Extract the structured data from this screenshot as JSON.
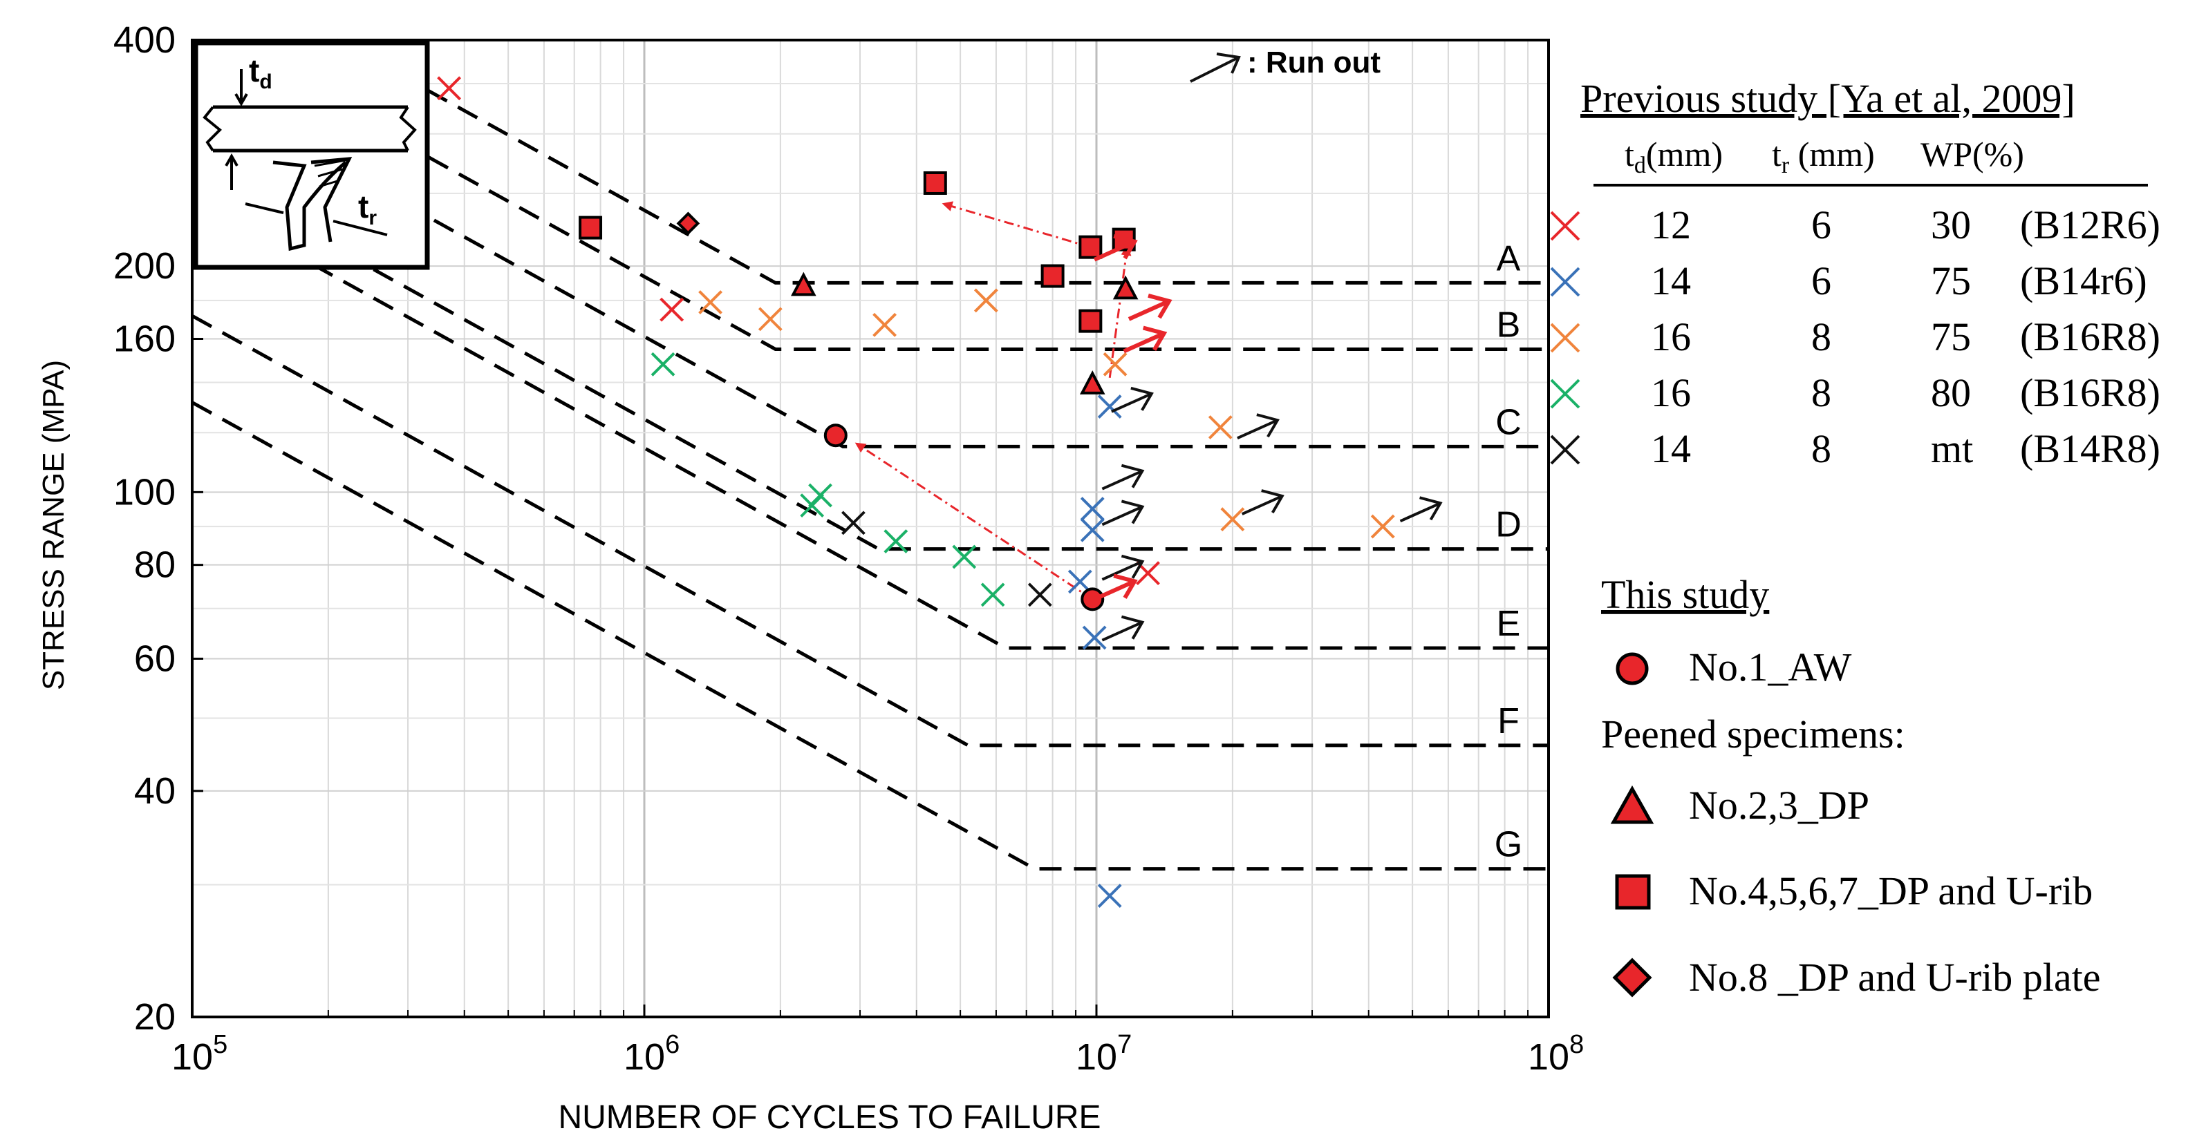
{
  "chart_data": {
    "type": "scatter",
    "x_scale": "log",
    "y_scale": "log",
    "xlim": [
      100000,
      100000000
    ],
    "ylim": [
      20,
      400
    ],
    "xlabel": "NUMBER OF CYCLES TO FAILURE",
    "ylabel": "STRESS RANGE (MPA)",
    "x_ticks": [
      {
        "value": 100000,
        "base": "10",
        "exp": "5"
      },
      {
        "value": 1000000,
        "base": "10",
        "exp": "6"
      },
      {
        "value": 10000000,
        "base": "10",
        "exp": "7"
      },
      {
        "value": 100000000,
        "base": "10",
        "exp": "8"
      }
    ],
    "y_ticks": [
      {
        "value": 400,
        "label": "400"
      },
      {
        "value": 200,
        "label": "200"
      },
      {
        "value": 160,
        "label": "160"
      },
      {
        "value": 100,
        "label": "100"
      },
      {
        "value": 80,
        "label": "80"
      },
      {
        "value": 60,
        "label": "60"
      },
      {
        "value": 40,
        "label": "40"
      },
      {
        "value": 20,
        "label": "20"
      }
    ],
    "grid": true,
    "runout_label": ": Run out",
    "design_curves": [
      {
        "name": "A",
        "knee_n": 1950000,
        "knee_s": 190
      },
      {
        "name": "B",
        "knee_n": 1950000,
        "knee_s": 155
      },
      {
        "name": "C",
        "knee_n": 2750000,
        "knee_s": 115
      },
      {
        "name": "D",
        "knee_n": 3300000,
        "knee_s": 84
      },
      {
        "name": "E",
        "knee_n": 6300000,
        "knee_s": 62
      },
      {
        "name": "F",
        "knee_n": 5200000,
        "knee_s": 46
      },
      {
        "name": "G",
        "knee_n": 7300000,
        "knee_s": 31.5
      }
    ],
    "series": [
      {
        "name": "B12R6",
        "color": "#e8262b",
        "marker": "x",
        "points": [
          [
            370000,
            345
          ],
          [
            1150000,
            175
          ],
          [
            13000000,
            78
          ]
        ]
      },
      {
        "name": "B14r6",
        "color": "#3a72b8",
        "marker": "x",
        "points": [
          [
            10700000,
            130
          ],
          [
            9800000,
            95
          ],
          [
            9800000,
            89
          ],
          [
            9200000,
            76
          ],
          [
            9900000,
            64
          ],
          [
            10700000,
            29
          ]
        ]
      },
      {
        "name": "B16R8",
        "color": "#f0843c",
        "marker": "x",
        "points": [
          [
            1400000,
            179
          ],
          [
            1900000,
            170
          ],
          [
            3400000,
            167
          ],
          [
            5700000,
            180
          ],
          [
            11000000,
            148
          ],
          [
            18800000,
            122
          ],
          [
            20000000,
            92
          ],
          [
            43000000,
            90
          ]
        ]
      },
      {
        "name": "B16R8",
        "color": "#1ab167",
        "marker": "x",
        "points": [
          [
            1100000,
            148
          ],
          [
            2350000,
            96
          ],
          [
            2450000,
            99
          ],
          [
            3600000,
            86
          ],
          [
            5100000,
            82
          ],
          [
            5900000,
            73
          ]
        ]
      },
      {
        "name": "B14R8",
        "color": "#111111",
        "marker": "x",
        "points": [
          [
            2900000,
            91
          ],
          [
            7500000,
            73
          ]
        ]
      },
      {
        "name": "No.1_AW",
        "color": "#e8262b",
        "marker": "circle",
        "points": [
          [
            2650000,
            119
          ],
          [
            9800000,
            72
          ]
        ]
      },
      {
        "name": "No.2,3_DP",
        "color": "#e8262b",
        "marker": "triangle",
        "points": [
          [
            2250000,
            188
          ],
          [
            9800000,
            139
          ],
          [
            11600000,
            186
          ]
        ]
      },
      {
        "name": "No.4,5,6,7_DP and U-rib",
        "color": "#e8262b",
        "marker": "square",
        "points": [
          [
            760000,
            225
          ],
          [
            4400000,
            258
          ],
          [
            8000000,
            194
          ],
          [
            9700000,
            212
          ],
          [
            11500000,
            217
          ],
          [
            9700000,
            169
          ]
        ]
      },
      {
        "name": "No.8 _DP and U-rib plate",
        "color": "#e8262b",
        "marker": "diamond",
        "points": [
          [
            1250000,
            228
          ]
        ]
      }
    ],
    "runouts": [
      {
        "n": 10800000,
        "s": 128,
        "color": "#111111"
      },
      {
        "n": 10300000,
        "s": 101,
        "color": "#111111"
      },
      {
        "n": 10300000,
        "s": 90.5,
        "color": "#111111"
      },
      {
        "n": 10300000,
        "s": 76.5,
        "color": "#111111"
      },
      {
        "n": 10300000,
        "s": 63.5,
        "color": "#111111"
      },
      {
        "n": 20500000,
        "s": 118,
        "color": "#111111"
      },
      {
        "n": 21000000,
        "s": 93.5,
        "color": "#111111"
      },
      {
        "n": 47000000,
        "s": 91.5,
        "color": "#111111"
      },
      {
        "n": 9900000,
        "s": 204,
        "color": "#e8262b"
      },
      {
        "n": 11800000,
        "s": 170,
        "color": "#e8262b"
      },
      {
        "n": 11500000,
        "s": 154,
        "color": "#e8262b"
      },
      {
        "n": 9900000,
        "s": 72,
        "color": "#e8262b"
      }
    ],
    "transition_arrows": [
      {
        "from_n": 9700000,
        "from_s": 212,
        "to_n": 4600000,
        "to_s": 242
      },
      {
        "from_n": 9800000,
        "from_s": 72,
        "to_n": 2950000,
        "to_s": 116
      },
      {
        "from_n": 10700000,
        "from_s": 142,
        "to_n": 11700000,
        "to_s": 212
      }
    ]
  },
  "legend": {
    "previous_title": "Previous study [Ya et al, 2009]",
    "col_td": "t",
    "col_td_sub": "d",
    "col_td_unit": "(mm)",
    "col_tr": "t",
    "col_tr_sub": "r",
    "col_tr_unit": " (mm)",
    "col_wp": "WP(%)",
    "rows": [
      {
        "td": "12",
        "tr": "6",
        "wp": "30",
        "name": "(B12R6)",
        "color": "#e8262b"
      },
      {
        "td": "14",
        "tr": "6",
        "wp": "75",
        "name": "(B14r6)",
        "color": "#3a72b8"
      },
      {
        "td": "16",
        "tr": "8",
        "wp": "75",
        "name": "(B16R8)",
        "color": "#f0843c"
      },
      {
        "td": "16",
        "tr": "8",
        "wp": "80",
        "name": "(B16R8)",
        "color": "#1ab167"
      },
      {
        "td": "14",
        "tr": "8",
        "wp": "mt",
        "name": "(B14R8)",
        "color": "#111111"
      }
    ],
    "this_study_title": "This study",
    "aw_label": "No.1_AW",
    "peened_label": "Peened specimens:",
    "tri_label": "No.2,3_DP",
    "sq_label": "No.4,5,6,7_DP and U-rib",
    "dia_label": "No.8 _DP and U-rib plate"
  },
  "inset": {
    "td_label": "t",
    "td_sub": "d",
    "tr_label": "t",
    "tr_sub": "r"
  }
}
